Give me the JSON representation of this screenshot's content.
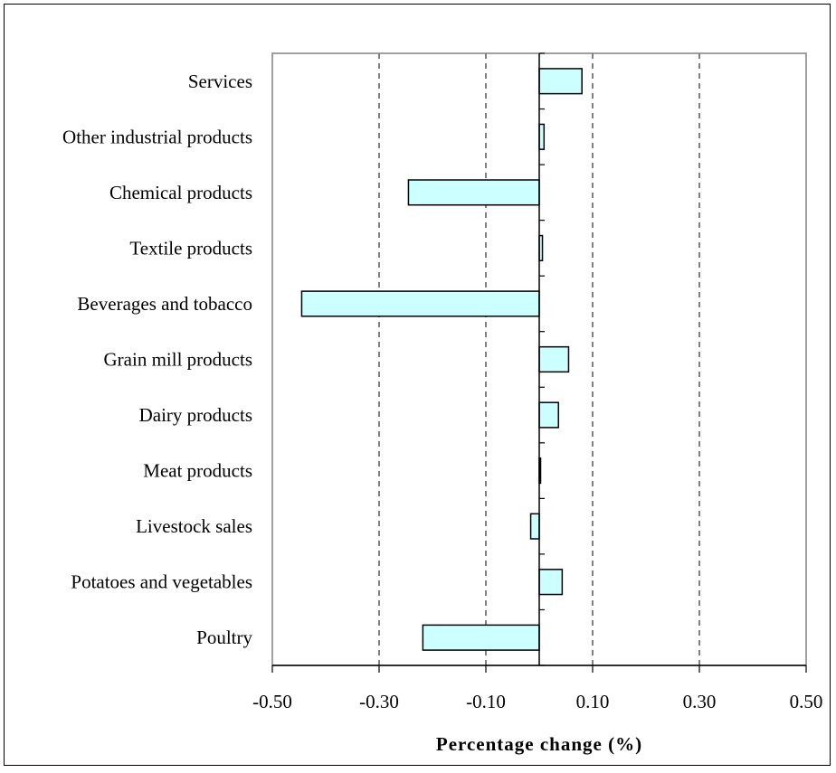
{
  "chart_data": {
    "type": "bar",
    "orientation": "horizontal",
    "categories": [
      "Services",
      "Other industrial products",
      "Chemical products",
      "Textile products",
      "Beverages and tobacco",
      "Grain mill products",
      "Dairy products",
      "Meat products",
      "Livestock sales",
      "Potatoes and vegetables",
      "Poultry"
    ],
    "values": [
      0.08,
      0.009,
      -0.245,
      0.006,
      -0.445,
      0.055,
      0.036,
      0.001,
      -0.016,
      0.043,
      -0.218
    ],
    "xlabel": "Percentage change (%)",
    "xlim": [
      -0.5,
      0.5
    ],
    "xticks": [
      -0.5,
      -0.3,
      -0.1,
      0.1,
      0.3,
      0.5
    ],
    "xtick_labels": [
      "-0.50",
      "-0.30",
      "-0.10",
      "0.10",
      "0.30",
      "0.50"
    ],
    "grid": "vertical dashed lines at -0.30, -0.10, 0.10, 0.30",
    "colors": {
      "bar_fill": "#ccffff",
      "bar_stroke": "#000000",
      "grid": "#000000"
    }
  }
}
